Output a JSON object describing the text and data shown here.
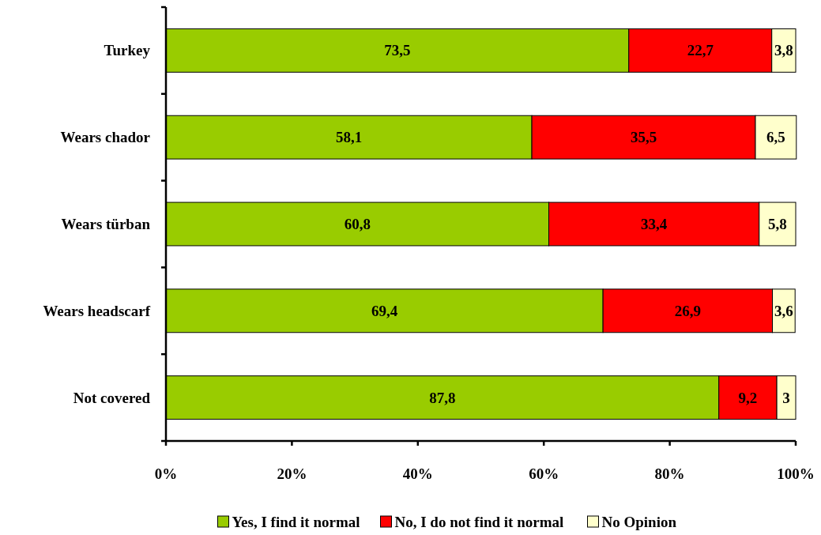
{
  "chart_data": {
    "type": "bar",
    "orientation": "horizontal",
    "stacked": true,
    "categories": [
      "Turkey",
      "Wears chador",
      "Wears türban",
      "Wears headscarf",
      "Not covered"
    ],
    "series": [
      {
        "name": "Yes, I find it normal",
        "color": "#99cc00",
        "values": [
          73.5,
          58.1,
          60.8,
          69.4,
          87.8
        ],
        "value_labels": [
          "73,5",
          "58,1",
          "60,8",
          "69,4",
          "87,8"
        ]
      },
      {
        "name": "No, I do not find it normal",
        "color": "#ff0000",
        "values": [
          22.7,
          35.5,
          33.4,
          26.9,
          9.2
        ],
        "value_labels": [
          "22,7",
          "35,5",
          "33,4",
          "26,9",
          "9,2"
        ]
      },
      {
        "name": "No Opinion",
        "color": "#ffffcc",
        "values": [
          3.8,
          6.5,
          5.8,
          3.6,
          3
        ],
        "value_labels": [
          "3,8",
          "6,5",
          "5,8",
          "3,6",
          "3"
        ]
      }
    ],
    "xlim": [
      0,
      100
    ],
    "xticks": [
      {
        "value": 0,
        "label": "0%"
      },
      {
        "value": 20,
        "label": "20%"
      },
      {
        "value": 40,
        "label": "40%"
      },
      {
        "value": 60,
        "label": "60%"
      },
      {
        "value": 80,
        "label": "80%"
      },
      {
        "value": 100,
        "label": "100%"
      }
    ],
    "legend": "bottom",
    "grid": false
  }
}
